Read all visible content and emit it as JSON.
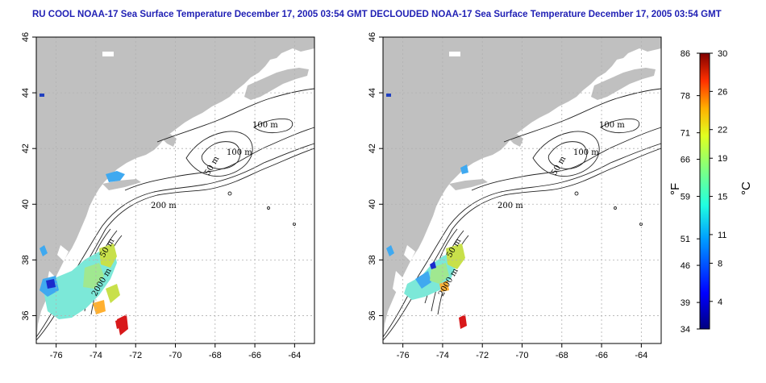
{
  "maps": [
    {
      "title": "RU COOL NOAA-17 Sea Surface Temperature December 17, 2005 03:54 GMT",
      "lon_ticks": [
        "-76",
        "-74",
        "-72",
        "-70",
        "-68",
        "-66",
        "-64"
      ],
      "lat_ticks": [
        "36",
        "38",
        "40",
        "42",
        "44",
        "46"
      ],
      "contour_labels": [
        "100 m",
        "100 m",
        "50 m",
        "200 m",
        "50 m",
        "2000 m"
      ]
    },
    {
      "title": "DECLOUDED NOAA-17 Sea Surface Temperature December 17, 2005 03:54 GMT",
      "lon_ticks": [
        "-76",
        "-74",
        "-72",
        "-70",
        "-68",
        "-66",
        "-64"
      ],
      "lat_ticks": [
        "36",
        "38",
        "40",
        "42",
        "44",
        "46"
      ],
      "contour_labels": [
        "100 m",
        "100 m",
        "50 m",
        "200 m",
        "50 m",
        "2000 m"
      ]
    }
  ],
  "colorbar": {
    "fahrenheit_ticks": [
      "86",
      "78",
      "71",
      "66",
      "59",
      "51",
      "46",
      "39",
      "34"
    ],
    "celsius_ticks": [
      "30",
      "26",
      "22",
      "19",
      "15",
      "11",
      "8",
      "4"
    ],
    "fahrenheit_unit": "°F",
    "celsius_unit": "°C"
  },
  "colors": {
    "land": "#c0c0c0",
    "title": "#1f1fb4",
    "grid": "#b0b0b0",
    "sst_cold": "#1a2bcc",
    "sst_cool": "#3fa9f0",
    "sst_mid": "#7ce8d8",
    "sst_warm": "#c8e04a",
    "sst_hot": "#d8181a"
  }
}
